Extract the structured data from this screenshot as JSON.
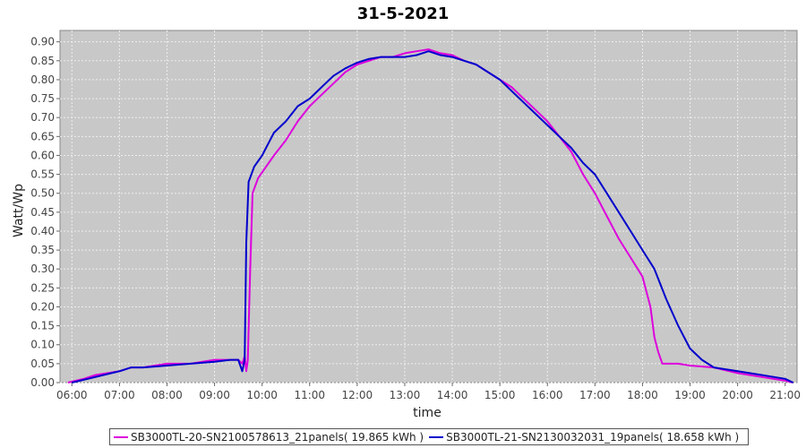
{
  "chart_data": {
    "type": "line",
    "title": "31-5-2021",
    "xlabel": "time",
    "ylabel": "Watt/Wp",
    "xlim": [
      "05:45",
      "21:15"
    ],
    "ylim": [
      0,
      0.93
    ],
    "x_ticks": [
      "06:00",
      "07:00",
      "08:00",
      "09:00",
      "10:00",
      "11:00",
      "12:00",
      "13:00",
      "14:00",
      "15:00",
      "16:00",
      "17:00",
      "18:00",
      "19:00",
      "20:00",
      "21:00"
    ],
    "y_ticks": [
      0.0,
      0.05,
      0.1,
      0.15,
      0.2,
      0.25,
      0.3,
      0.35,
      0.4,
      0.45,
      0.5,
      0.55,
      0.6,
      0.65,
      0.7,
      0.75,
      0.8,
      0.85,
      0.9
    ],
    "grid": true,
    "legend_position": "bottom",
    "plot_background": "#c8c8c8",
    "series": [
      {
        "name": "SB3000TL-20-SN2100578613_21panels( 19.865 kWh )",
        "color": "#dd00dd",
        "points": [
          [
            "05:55",
            0.0
          ],
          [
            "06:15",
            0.01
          ],
          [
            "06:30",
            0.02
          ],
          [
            "07:00",
            0.03
          ],
          [
            "07:15",
            0.04
          ],
          [
            "07:30",
            0.04
          ],
          [
            "08:00",
            0.05
          ],
          [
            "08:30",
            0.05
          ],
          [
            "09:00",
            0.06
          ],
          [
            "09:20",
            0.06
          ],
          [
            "09:30",
            0.06
          ],
          [
            "09:35",
            0.05
          ],
          [
            "09:38",
            0.07
          ],
          [
            "09:40",
            0.03
          ],
          [
            "09:42",
            0.06
          ],
          [
            "09:45",
            0.3
          ],
          [
            "09:48",
            0.5
          ],
          [
            "09:55",
            0.54
          ],
          [
            "10:05",
            0.57
          ],
          [
            "10:15",
            0.6
          ],
          [
            "10:30",
            0.64
          ],
          [
            "10:45",
            0.69
          ],
          [
            "11:00",
            0.73
          ],
          [
            "11:15",
            0.76
          ],
          [
            "11:30",
            0.79
          ],
          [
            "11:45",
            0.82
          ],
          [
            "12:00",
            0.84
          ],
          [
            "12:15",
            0.85
          ],
          [
            "12:30",
            0.86
          ],
          [
            "12:45",
            0.86
          ],
          [
            "13:00",
            0.87
          ],
          [
            "13:15",
            0.875
          ],
          [
            "13:30",
            0.88
          ],
          [
            "13:45",
            0.87
          ],
          [
            "14:00",
            0.865
          ],
          [
            "14:15",
            0.85
          ],
          [
            "14:30",
            0.84
          ],
          [
            "14:45",
            0.82
          ],
          [
            "15:00",
            0.8
          ],
          [
            "15:15",
            0.78
          ],
          [
            "15:30",
            0.75
          ],
          [
            "15:45",
            0.72
          ],
          [
            "16:00",
            0.69
          ],
          [
            "16:15",
            0.65
          ],
          [
            "16:30",
            0.61
          ],
          [
            "16:45",
            0.55
          ],
          [
            "17:00",
            0.5
          ],
          [
            "17:15",
            0.44
          ],
          [
            "17:30",
            0.38
          ],
          [
            "17:45",
            0.33
          ],
          [
            "18:00",
            0.28
          ],
          [
            "18:10",
            0.2
          ],
          [
            "18:15",
            0.12
          ],
          [
            "18:20",
            0.08
          ],
          [
            "18:25",
            0.05
          ],
          [
            "18:45",
            0.05
          ],
          [
            "19:00",
            0.045
          ],
          [
            "19:30",
            0.04
          ],
          [
            "20:00",
            0.025
          ],
          [
            "20:30",
            0.015
          ],
          [
            "21:00",
            0.005
          ],
          [
            "21:10",
            0.0
          ]
        ]
      },
      {
        "name": "SB3000TL-21-SN2130032031_19panels( 18.658 kWh )",
        "color": "#0000cc",
        "points": [
          [
            "06:00",
            0.0
          ],
          [
            "06:20",
            0.01
          ],
          [
            "06:40",
            0.02
          ],
          [
            "07:00",
            0.03
          ],
          [
            "07:15",
            0.04
          ],
          [
            "07:30",
            0.04
          ],
          [
            "08:00",
            0.045
          ],
          [
            "08:30",
            0.05
          ],
          [
            "09:00",
            0.055
          ],
          [
            "09:20",
            0.06
          ],
          [
            "09:30",
            0.06
          ],
          [
            "09:35",
            0.03
          ],
          [
            "09:38",
            0.06
          ],
          [
            "09:40",
            0.37
          ],
          [
            "09:43",
            0.53
          ],
          [
            "09:50",
            0.57
          ],
          [
            "10:00",
            0.6
          ],
          [
            "10:15",
            0.66
          ],
          [
            "10:30",
            0.69
          ],
          [
            "10:45",
            0.73
          ],
          [
            "11:00",
            0.75
          ],
          [
            "11:15",
            0.78
          ],
          [
            "11:30",
            0.81
          ],
          [
            "11:45",
            0.83
          ],
          [
            "12:00",
            0.845
          ],
          [
            "12:15",
            0.855
          ],
          [
            "12:30",
            0.86
          ],
          [
            "12:45",
            0.86
          ],
          [
            "13:00",
            0.86
          ],
          [
            "13:15",
            0.865
          ],
          [
            "13:30",
            0.875
          ],
          [
            "13:45",
            0.865
          ],
          [
            "14:00",
            0.86
          ],
          [
            "14:15",
            0.85
          ],
          [
            "14:30",
            0.84
          ],
          [
            "14:45",
            0.82
          ],
          [
            "15:00",
            0.8
          ],
          [
            "15:15",
            0.77
          ],
          [
            "15:30",
            0.74
          ],
          [
            "15:45",
            0.71
          ],
          [
            "16:00",
            0.68
          ],
          [
            "16:15",
            0.65
          ],
          [
            "16:30",
            0.62
          ],
          [
            "16:45",
            0.58
          ],
          [
            "17:00",
            0.55
          ],
          [
            "17:15",
            0.5
          ],
          [
            "17:30",
            0.45
          ],
          [
            "17:45",
            0.4
          ],
          [
            "18:00",
            0.35
          ],
          [
            "18:15",
            0.3
          ],
          [
            "18:30",
            0.22
          ],
          [
            "18:45",
            0.15
          ],
          [
            "19:00",
            0.09
          ],
          [
            "19:15",
            0.06
          ],
          [
            "19:30",
            0.04
          ],
          [
            "20:00",
            0.03
          ],
          [
            "20:30",
            0.02
          ],
          [
            "21:00",
            0.01
          ],
          [
            "21:10",
            0.0
          ]
        ]
      }
    ]
  }
}
